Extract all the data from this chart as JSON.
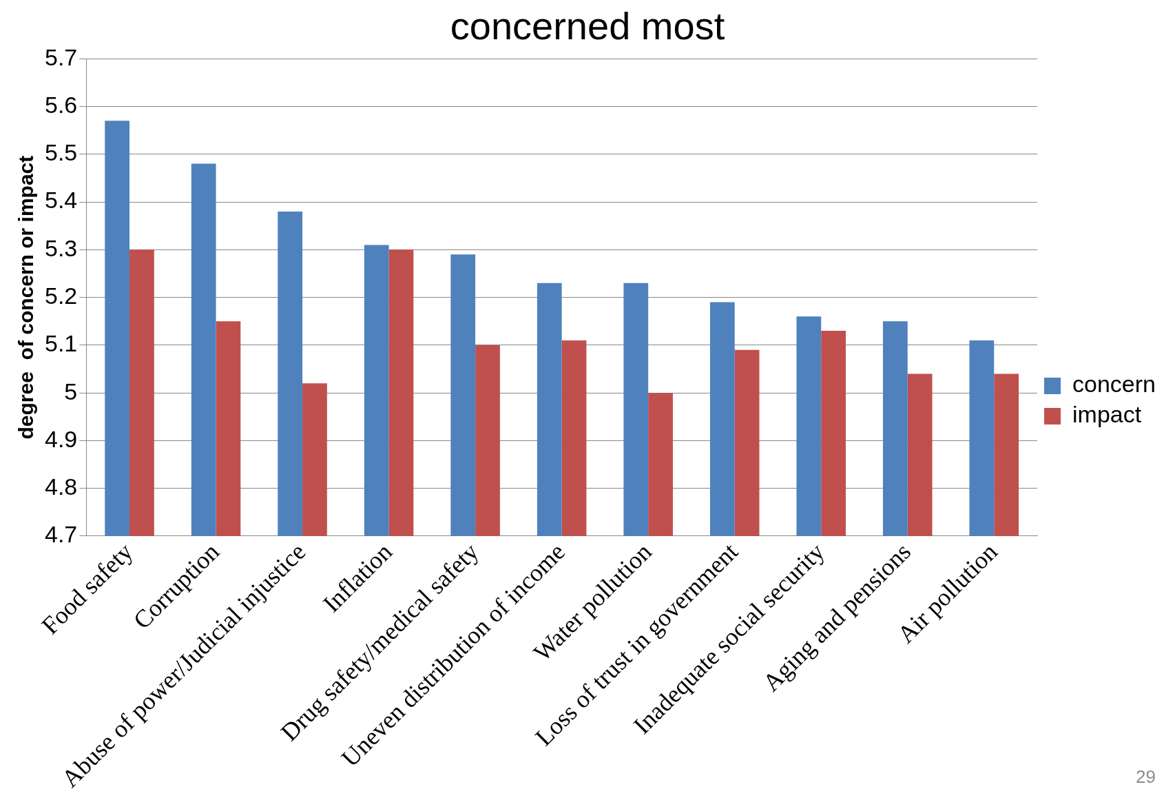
{
  "chart_data": {
    "type": "bar",
    "title": "concerned most",
    "ylabel": "degree  of concern or impact",
    "categories": [
      "Food safety",
      "Corruption",
      "Abuse of power/Judicial injustice",
      "Inflation",
      "Drug safety/medical safety",
      "Uneven distribution of income",
      "Water pollution",
      "Loss of trust in government",
      "Inadequate social security",
      "Aging and pensions",
      "Air pollution"
    ],
    "series": [
      {
        "name": "concern",
        "color": "#4f81bd",
        "values": [
          5.57,
          5.48,
          5.38,
          5.31,
          5.29,
          5.23,
          5.23,
          5.19,
          5.16,
          5.15,
          5.11
        ]
      },
      {
        "name": "impact",
        "color": "#c0504d",
        "values": [
          5.3,
          5.15,
          5.02,
          5.3,
          5.1,
          5.11,
          5.0,
          5.09,
          5.13,
          5.04,
          5.04
        ]
      }
    ],
    "ylim": [
      4.7,
      5.7
    ],
    "yticks": [
      4.7,
      4.8,
      4.9,
      5,
      5.1,
      5.2,
      5.3,
      5.4,
      5.5,
      5.6,
      5.7
    ],
    "grid": "y",
    "legend": "right",
    "annotations": [
      "29"
    ]
  }
}
